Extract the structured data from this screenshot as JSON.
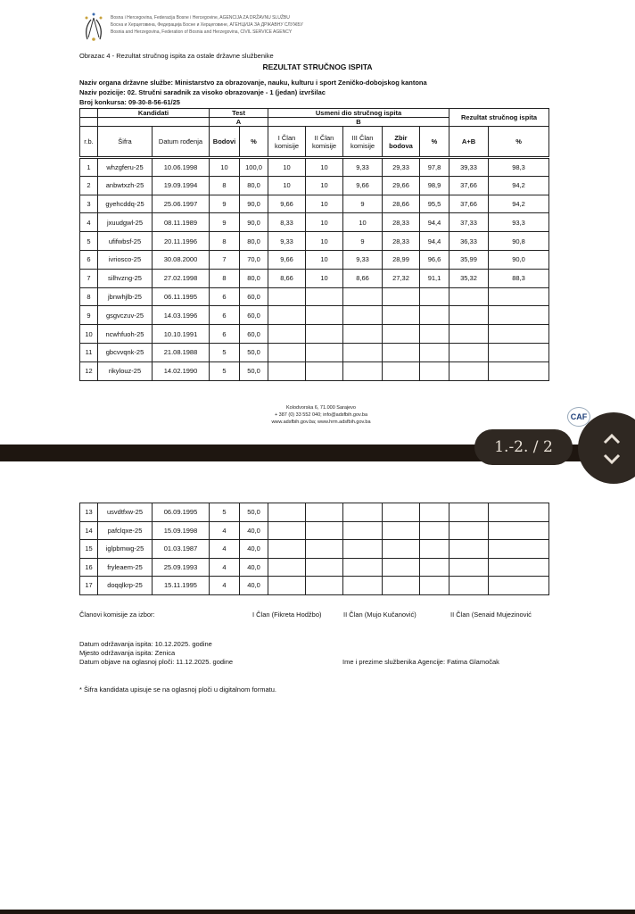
{
  "agency": {
    "lines": [
      "Bosna i Hercegovina, Federacija Bosne i Hercegovine, AGENCIJA ZA DRŽAVNU SLUŽBU",
      "Босна и Херцеговина, Федерација Босне и Херцеговине, АГЕНЦИЈА ЗА ДРЖАВНУ СЛУЖБУ",
      "Bosnia and Herzegovina, Federation of Bosnia and Herzegovina, CIVIL SERVICE AGENCY"
    ]
  },
  "form_label": "Obrazac 4 - Rezultat stručnog ispita za ostale državne službenike",
  "title": "REZULTAT STRUČNOG ISPITA",
  "organ": "Naziv organa državne službe: Ministarstvo za obrazovanje, nauku, kulturu i sport Zeničko-dobojskog kantona",
  "position": "Naziv pozicije: 02. Stručni saradnik za visoko obrazovanje - 1 (jedan) izvršilac",
  "competition": "Broj konkursa: 09-30-8-56-61/25",
  "table_headers": {
    "kandidati": "Kandidati",
    "test": "Test",
    "a": "A",
    "usmeni": "Usmeni dio stručnog ispita",
    "b": "B",
    "rezultat": "Rezultat stručnog ispita",
    "rb": "r.b.",
    "sifra": "Šifra",
    "datum": "Datum rođenja",
    "bodovi": "Bodovi",
    "pct": "%",
    "clan1": "I Član komisije",
    "clan2": "II Član komisije",
    "clan3": "III Član komisije",
    "zbir": "Zbir bodova",
    "pct_b": "%",
    "ab": "A+B",
    "pct_total": "%"
  },
  "rows_page1": [
    [
      "1",
      "whzgferu-25",
      "10.06.1998",
      "10",
      "100,0",
      "10",
      "10",
      "9,33",
      "29,33",
      "97,8",
      "39,33",
      "98,3"
    ],
    [
      "2",
      "anbwtxzh-25",
      "19.09.1994",
      "8",
      "80,0",
      "10",
      "10",
      "9,66",
      "29,66",
      "98,9",
      "37,66",
      "94,2"
    ],
    [
      "3",
      "gyehcddq-25",
      "25.06.1997",
      "9",
      "90,0",
      "9,66",
      "10",
      "9",
      "28,66",
      "95,5",
      "37,66",
      "94,2"
    ],
    [
      "4",
      "jxuudgwl-25",
      "08.11.1989",
      "9",
      "90,0",
      "8,33",
      "10",
      "10",
      "28,33",
      "94,4",
      "37,33",
      "93,3"
    ],
    [
      "5",
      "ufifwbsf-25",
      "20.11.1996",
      "8",
      "80,0",
      "9,33",
      "10",
      "9",
      "28,33",
      "94,4",
      "36,33",
      "90,8"
    ],
    [
      "6",
      "ivriosco-25",
      "30.08.2000",
      "7",
      "70,0",
      "9,66",
      "10",
      "9,33",
      "28,99",
      "96,6",
      "35,99",
      "90,0"
    ],
    [
      "7",
      "silhvzng-25",
      "27.02.1998",
      "8",
      "80,0",
      "8,66",
      "10",
      "8,66",
      "27,32",
      "91,1",
      "35,32",
      "88,3"
    ],
    [
      "8",
      "jbnwhjlb-25",
      "06.11.1995",
      "6",
      "60,0",
      "",
      "",
      "",
      "",
      "",
      "",
      ""
    ],
    [
      "9",
      "gsgvczuv-25",
      "14.03.1996",
      "6",
      "60,0",
      "",
      "",
      "",
      "",
      "",
      "",
      ""
    ],
    [
      "10",
      "ncwhfuoh-25",
      "10.10.1991",
      "6",
      "60,0",
      "",
      "",
      "",
      "",
      "",
      "",
      ""
    ],
    [
      "11",
      "gbcvvqnk-25",
      "21.08.1988",
      "5",
      "50,0",
      "",
      "",
      "",
      "",
      "",
      "",
      ""
    ],
    [
      "12",
      "rikylouz-25",
      "14.02.1990",
      "5",
      "50,0",
      "",
      "",
      "",
      "",
      "",
      "",
      ""
    ]
  ],
  "rows_page2": [
    [
      "13",
      "usvdtfxw-25",
      "06.09.1995",
      "5",
      "50,0",
      "",
      "",
      "",
      "",
      "",
      "",
      ""
    ],
    [
      "14",
      "pafclqxe-25",
      "15.09.1998",
      "4",
      "40,0",
      "",
      "",
      "",
      "",
      "",
      "",
      ""
    ],
    [
      "15",
      "iglpbmwg-25",
      "01.03.1987",
      "4",
      "40,0",
      "",
      "",
      "",
      "",
      "",
      "",
      ""
    ],
    [
      "16",
      "fryleaem-25",
      "25.09.1993",
      "4",
      "40,0",
      "",
      "",
      "",
      "",
      "",
      "",
      ""
    ],
    [
      "17",
      "doqqlkrp-25",
      "15.11.1995",
      "4",
      "40,0",
      "",
      "",
      "",
      "",
      "",
      "",
      ""
    ]
  ],
  "address": [
    "Kolodvorska 6, 71.000 Sarajevo",
    "+ 387 (0) 33 552 040; info@adsfbih.gov.ba",
    "www.adsfbih.gov.ba; www.hrm.adsfbih.gov.ba"
  ],
  "caf_logo": "CAF",
  "viewer": {
    "page_indicator": "1.-2. / 2",
    "nav_icons": [
      "chevron-up-icon",
      "chevron-down-icon"
    ]
  },
  "commission": {
    "label": "Članovi komisije za izbor:",
    "m1": "I Član (Fikreta Hodžbo)",
    "m2": "II Član (Mujo Kučanović)",
    "m3": "II Član (Senaid Mujezinović"
  },
  "exam_date": "Datum održavanja ispita: 10.12.2025. godine",
  "exam_place": "Mjesto održavanja ispita: Zenica",
  "publish_date": "Datum objave na oglasnoj ploči: 11.12.2025. godine",
  "officer": "Ime i prezime službenika Agencije: Fatima Glamočak",
  "footnote": "* Šifra kandidata upisuje se na oglasnoj ploči u digitalnom formatu."
}
